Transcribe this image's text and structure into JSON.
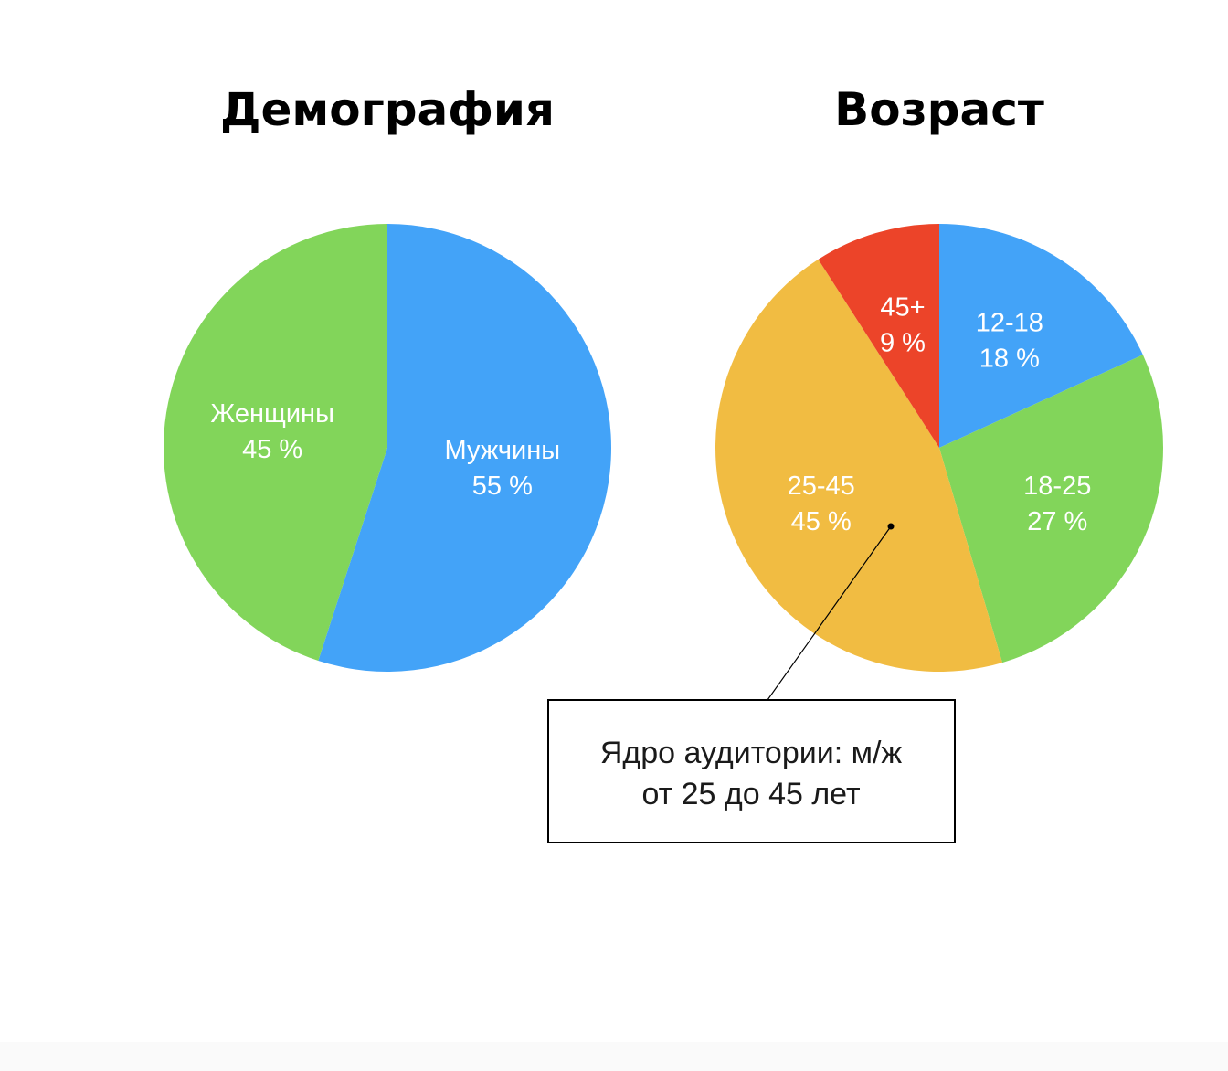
{
  "chart_data": [
    {
      "type": "pie",
      "title": "Демография",
      "start_angle_deg": 0,
      "direction": "clockwise",
      "slices": [
        {
          "label": "Мужчины",
          "value": 55,
          "value_text": "55 %",
          "color": "#43A3F8"
        },
        {
          "label": "Женщины",
          "value": 45,
          "value_text": "45 %",
          "color": "#82D55A"
        }
      ]
    },
    {
      "type": "pie",
      "title": "Возраст",
      "start_angle_deg": 0,
      "direction": "clockwise",
      "slices": [
        {
          "label": "12-18",
          "value": 18,
          "value_text": "18 %",
          "color": "#43A3F8"
        },
        {
          "label": "18-25",
          "value": 27,
          "value_text": "27 %",
          "color": "#82D55A"
        },
        {
          "label": "25-45",
          "value": 45,
          "value_text": "45 %",
          "color": "#F1BC42"
        },
        {
          "label": "45+",
          "value": 9,
          "value_text": "9 %",
          "color": "#EC4429"
        }
      ],
      "annotation": {
        "target_slice": "25-45",
        "lines": [
          "Ядро аудитории: м/ж",
          "от 25 до 45 лет"
        ]
      }
    }
  ]
}
